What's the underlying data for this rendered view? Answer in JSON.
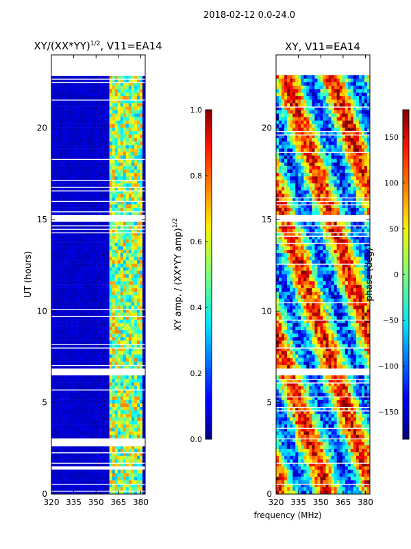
{
  "figure": {
    "suptitle": "2018-02-12 0.0-24.0",
    "shared_xlabel": "frequency (MHz)"
  },
  "chart_data": [
    {
      "type": "heatmap",
      "title_main": "XY/(XX*YY)",
      "title_exp": "1/2",
      "title_tail": ", V11=EA14",
      "xlabel": "frequency (MHz)",
      "ylabel": "UT (hours)",
      "xlim": [
        320,
        383
      ],
      "ylim": [
        0,
        24
      ],
      "xticks": [
        320,
        335,
        350,
        365,
        380
      ],
      "yticks": [
        0,
        5,
        10,
        15,
        20
      ],
      "data_extent_hours": [
        0,
        22.9
      ],
      "colorbar": {
        "label_main": "XY amp. / (XX*YY amp)",
        "label_exp": "1/2",
        "range": [
          0.0,
          1.0
        ],
        "ticks": [
          "0.0",
          "0.2",
          "0.4",
          "0.6",
          "0.8",
          "1.0"
        ],
        "tick_values": [
          0.0,
          0.2,
          0.4,
          0.6,
          0.8,
          1.0
        ]
      },
      "description": "Normalized cross-hand amplitude; values near 0 below ~360 MHz and 0.3–0.7 in bands 360–380 MHz",
      "bright_bands_MHz": [
        [
          360,
          363
        ],
        [
          365,
          368
        ],
        [
          370,
          373
        ],
        [
          375,
          380
        ]
      ],
      "gaps_hours": [
        [
          6.55,
          6.75
        ],
        [
          14.9,
          15.1
        ],
        [
          2.85,
          2.95
        ],
        [
          1.35,
          1.45
        ]
      ]
    },
    {
      "type": "heatmap",
      "title": "XY, V11=EA14",
      "xlim": [
        320,
        383
      ],
      "ylim": [
        0,
        24
      ],
      "xticks": [
        320,
        335,
        350,
        365,
        380
      ],
      "yticks": [
        0,
        5,
        10,
        15,
        20
      ],
      "data_extent_hours": [
        0,
        22.9
      ],
      "colorbar": {
        "label": "phase (deg)",
        "range": [
          -180,
          180
        ],
        "ticks": [
          "−150",
          "−100",
          "−50",
          "0",
          "50",
          "100",
          "150"
        ],
        "tick_values": [
          -150,
          -100,
          -50,
          0,
          50,
          100,
          150
        ]
      },
      "description": "Cross-hand phase, wrapped -180..180 deg, varying with frequency and time",
      "gaps_hours": [
        [
          6.55,
          6.75
        ],
        [
          14.9,
          15.1
        ]
      ]
    }
  ]
}
